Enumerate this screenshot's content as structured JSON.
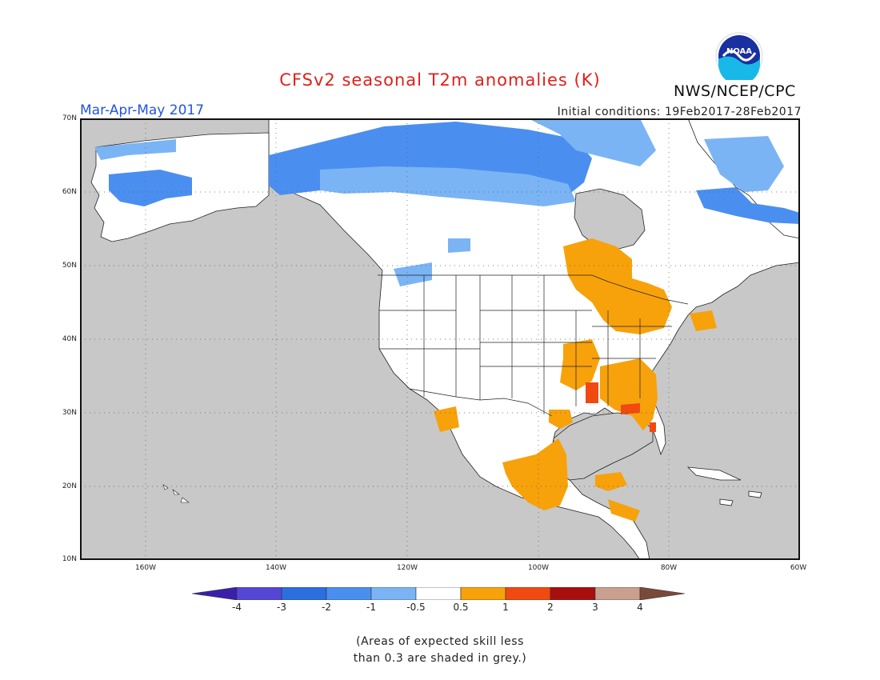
{
  "title": "CFSv2 seasonal T2m anomalies (K)",
  "agency": "NWS/NCEP/CPC",
  "logo_text": "NOAA",
  "season": "Mar-Apr-May 2017",
  "initial_conditions": "Initial conditions: 19Feb2017-28Feb2017",
  "map": {
    "lon_range": [
      "170W",
      "60W"
    ],
    "lat_range": [
      "10N",
      "70N"
    ],
    "lat_ticks": [
      "70N",
      "60N",
      "50N",
      "40N",
      "30N",
      "20N",
      "10N"
    ],
    "lon_ticks": [
      "160W",
      "140W",
      "120W",
      "100W",
      "80W",
      "60W"
    ],
    "grid": "dotted",
    "colors": {
      "land": "#ffffff",
      "low_skill": "#c8c8c8",
      "minus1_to_minus2": "#4a8ff0",
      "minus0_5_to_minus1": "#7ab4f5",
      "plus0_5_to_plus1": "#f7a20a",
      "plus1_to_plus2": "#f04a10"
    }
  },
  "colorbar": {
    "labels": [
      "-4",
      "-3",
      "-2",
      "-1",
      "-0.5",
      "0.5",
      "1",
      "2",
      "3",
      "4"
    ],
    "colors": [
      "#3b1fa8",
      "#5547d6",
      "#2a6ee0",
      "#4a8ff0",
      "#7ab4f5",
      "#ffffff",
      "#f7a20a",
      "#f04a10",
      "#a80e0e",
      "#c9a090",
      "#7a4a38"
    ]
  },
  "note": [
    "(Areas of expected skill less",
    "than 0.3 are shaded in grey.)"
  ]
}
